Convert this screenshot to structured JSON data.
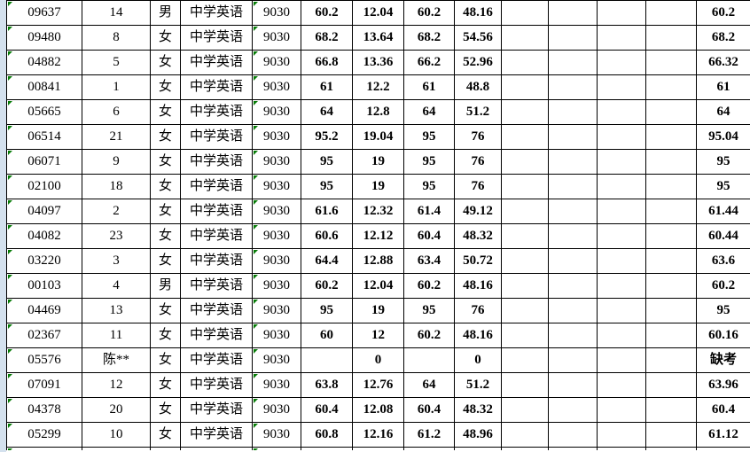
{
  "spreadsheet": {
    "gutter_color": "#d4e1ee",
    "grid_border_color": "#000000",
    "error_marker_color": "#077c07",
    "error_marker_columns": [
      0,
      4
    ],
    "bold_columns": [
      5,
      6,
      7,
      8,
      13
    ],
    "table": {
      "rows": [
        [
          "09637",
          "14",
          "男",
          "中学英语",
          "9030",
          "60.2",
          "12.04",
          "60.2",
          "48.16",
          "",
          "",
          "",
          "",
          "60.2"
        ],
        [
          "09480",
          "8",
          "女",
          "中学英语",
          "9030",
          "68.2",
          "13.64",
          "68.2",
          "54.56",
          "",
          "",
          "",
          "",
          "68.2"
        ],
        [
          "04882",
          "5",
          "女",
          "中学英语",
          "9030",
          "66.8",
          "13.36",
          "66.2",
          "52.96",
          "",
          "",
          "",
          "",
          "66.32"
        ],
        [
          "00841",
          "1",
          "女",
          "中学英语",
          "9030",
          "61",
          "12.2",
          "61",
          "48.8",
          "",
          "",
          "",
          "",
          "61"
        ],
        [
          "05665",
          "6",
          "女",
          "中学英语",
          "9030",
          "64",
          "12.8",
          "64",
          "51.2",
          "",
          "",
          "",
          "",
          "64"
        ],
        [
          "06514",
          "21",
          "女",
          "中学英语",
          "9030",
          "95.2",
          "19.04",
          "95",
          "76",
          "",
          "",
          "",
          "",
          "95.04"
        ],
        [
          "06071",
          "9",
          "女",
          "中学英语",
          "9030",
          "95",
          "19",
          "95",
          "76",
          "",
          "",
          "",
          "",
          "95"
        ],
        [
          "02100",
          "18",
          "女",
          "中学英语",
          "9030",
          "95",
          "19",
          "95",
          "76",
          "",
          "",
          "",
          "",
          "95"
        ],
        [
          "04097",
          "2",
          "女",
          "中学英语",
          "9030",
          "61.6",
          "12.32",
          "61.4",
          "49.12",
          "",
          "",
          "",
          "",
          "61.44"
        ],
        [
          "04082",
          "23",
          "女",
          "中学英语",
          "9030",
          "60.6",
          "12.12",
          "60.4",
          "48.32",
          "",
          "",
          "",
          "",
          "60.44"
        ],
        [
          "03220",
          "3",
          "女",
          "中学英语",
          "9030",
          "64.4",
          "12.88",
          "63.4",
          "50.72",
          "",
          "",
          "",
          "",
          "63.6"
        ],
        [
          "00103",
          "4",
          "男",
          "中学英语",
          "9030",
          "60.2",
          "12.04",
          "60.2",
          "48.16",
          "",
          "",
          "",
          "",
          "60.2"
        ],
        [
          "04469",
          "13",
          "女",
          "中学英语",
          "9030",
          "95",
          "19",
          "95",
          "76",
          "",
          "",
          "",
          "",
          "95"
        ],
        [
          "02367",
          "11",
          "女",
          "中学英语",
          "9030",
          "60",
          "12",
          "60.2",
          "48.16",
          "",
          "",
          "",
          "",
          "60.16"
        ],
        [
          "05576",
          "陈**",
          "女",
          "中学英语",
          "9030",
          "",
          "0",
          "",
          "0",
          "",
          "",
          "",
          "",
          "缺考"
        ],
        [
          "07091",
          "12",
          "女",
          "中学英语",
          "9030",
          "63.8",
          "12.76",
          "64",
          "51.2",
          "",
          "",
          "",
          "",
          "63.96"
        ],
        [
          "04378",
          "20",
          "女",
          "中学英语",
          "9030",
          "60.4",
          "12.08",
          "60.4",
          "48.32",
          "",
          "",
          "",
          "",
          "60.4"
        ],
        [
          "05299",
          "10",
          "女",
          "中学英语",
          "9030",
          "60.8",
          "12.16",
          "61.2",
          "48.96",
          "",
          "",
          "",
          "",
          "61.12"
        ]
      ]
    }
  }
}
